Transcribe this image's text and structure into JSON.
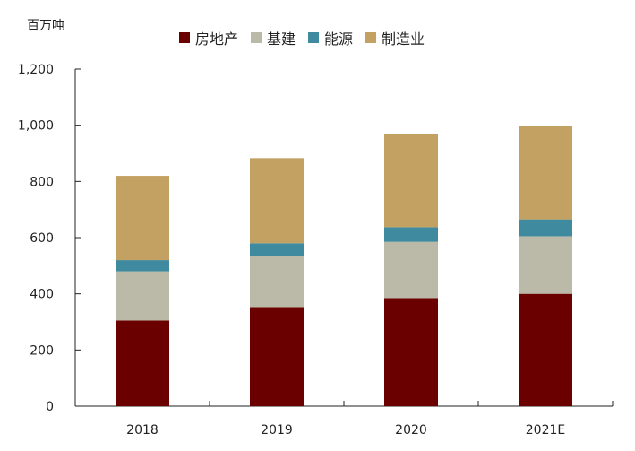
{
  "chart_data": {
    "type": "bar",
    "stacked": true,
    "unit_label": "百万吨",
    "categories": [
      "2018",
      "2019",
      "2020",
      "2021E"
    ],
    "series": [
      {
        "name": "房地产",
        "color": "#6b0000",
        "values": [
          305,
          353,
          385,
          400
        ]
      },
      {
        "name": "基建",
        "color": "#bbb9a7",
        "values": [
          175,
          182,
          200,
          205
        ]
      },
      {
        "name": "能源",
        "color": "#3f8a9e",
        "values": [
          40,
          45,
          52,
          60
        ]
      },
      {
        "name": "制造业",
        "color": "#c3a163",
        "values": [
          300,
          303,
          330,
          333
        ]
      }
    ],
    "ylim": [
      0,
      1200
    ],
    "yticks": [
      0,
      200,
      400,
      600,
      800,
      1000,
      1200
    ],
    "ytick_labels": [
      "0",
      "200",
      "400",
      "600",
      "800",
      "1,000",
      "1,200"
    ],
    "legend_position": "top-center",
    "grid": false
  }
}
